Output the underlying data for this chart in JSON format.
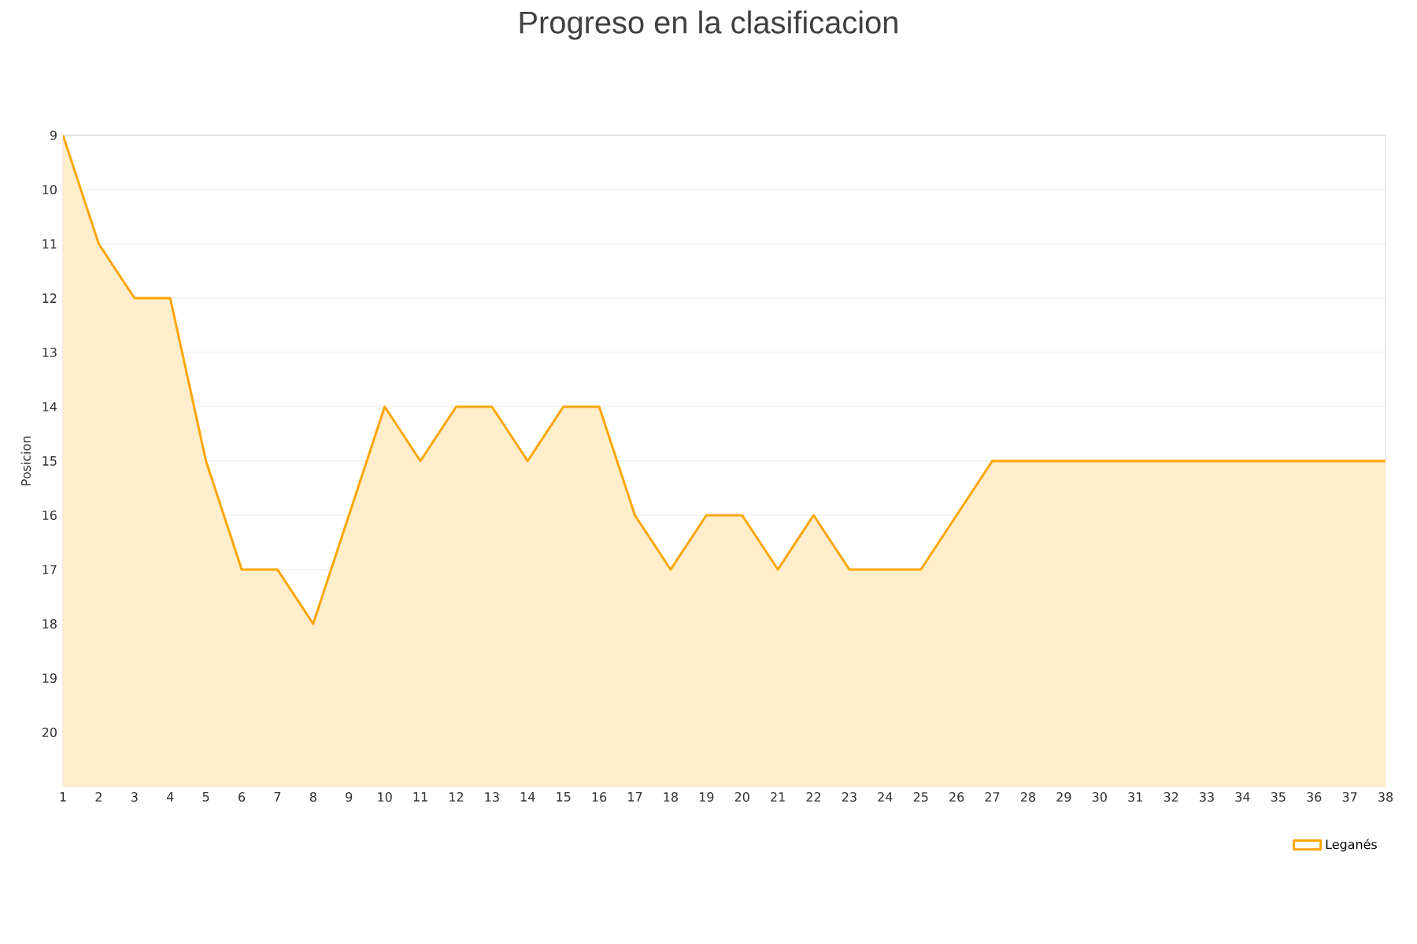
{
  "chart_data": {
    "type": "area",
    "title": "Progreso en la clasificacion",
    "ylabel": "Posicion",
    "x": [
      1,
      2,
      3,
      4,
      5,
      6,
      7,
      8,
      9,
      10,
      11,
      12,
      13,
      14,
      15,
      16,
      17,
      18,
      19,
      20,
      21,
      22,
      23,
      24,
      25,
      26,
      27,
      28,
      29,
      30,
      31,
      32,
      33,
      34,
      35,
      36,
      37,
      38
    ],
    "series": [
      {
        "name": "Leganés",
        "color": "#ffa500",
        "values": [
          9,
          11,
          12,
          12,
          15,
          17,
          17,
          18,
          16,
          14,
          15,
          14,
          14,
          15,
          14,
          14,
          16,
          17,
          16,
          16,
          17,
          16,
          17,
          17,
          17,
          16,
          15,
          15,
          15,
          15,
          15,
          15,
          15,
          15,
          15,
          15,
          15,
          15
        ]
      }
    ],
    "xlim": [
      1,
      38
    ],
    "xticks": [
      1,
      2,
      3,
      4,
      5,
      6,
      7,
      8,
      9,
      10,
      11,
      12,
      13,
      14,
      15,
      16,
      17,
      18,
      19,
      20,
      21,
      22,
      23,
      24,
      25,
      26,
      27,
      28,
      29,
      30,
      31,
      32,
      33,
      34,
      35,
      36,
      37,
      38
    ],
    "ylim": [
      21,
      9
    ],
    "yticks": [
      9,
      10,
      11,
      12,
      13,
      14,
      15,
      16,
      17,
      18,
      19,
      20
    ],
    "grid": "y",
    "legend": "bottom right",
    "marker": "none",
    "line_style": "solid"
  }
}
